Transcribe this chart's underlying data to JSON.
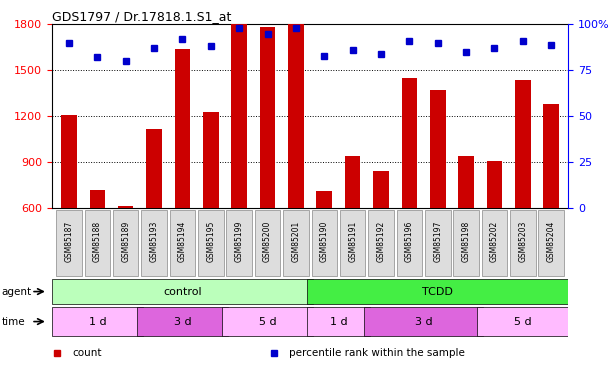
{
  "title": "GDS1797 / Dr.17818.1.S1_at",
  "samples": [
    "GSM85187",
    "GSM85188",
    "GSM85189",
    "GSM85193",
    "GSM85194",
    "GSM85195",
    "GSM85199",
    "GSM85200",
    "GSM85201",
    "GSM85190",
    "GSM85191",
    "GSM85192",
    "GSM85196",
    "GSM85197",
    "GSM85198",
    "GSM85202",
    "GSM85203",
    "GSM85204"
  ],
  "counts": [
    1210,
    720,
    615,
    1120,
    1640,
    1230,
    1800,
    1780,
    1800,
    710,
    940,
    840,
    1450,
    1370,
    940,
    910,
    1440,
    1280
  ],
  "percentiles": [
    90,
    82,
    80,
    87,
    92,
    88,
    98,
    95,
    98,
    83,
    86,
    84,
    91,
    90,
    85,
    87,
    91,
    89
  ],
  "ylim_left": [
    600,
    1800
  ],
  "ylim_right": [
    0,
    100
  ],
  "yticks_left": [
    600,
    900,
    1200,
    1500,
    1800
  ],
  "yticks_right": [
    0,
    25,
    50,
    75,
    100
  ],
  "bar_color": "#cc0000",
  "dot_color": "#0000cc",
  "agent_groups": [
    {
      "label": "control",
      "start": 0,
      "end": 9,
      "color": "#bbffbb"
    },
    {
      "label": "TCDD",
      "start": 9,
      "end": 18,
      "color": "#44ee44"
    }
  ],
  "time_groups": [
    {
      "label": "1 d",
      "start": 0,
      "end": 3,
      "color": "#ffbbff"
    },
    {
      "label": "3 d",
      "start": 3,
      "end": 6,
      "color": "#ee77ee"
    },
    {
      "label": "5 d",
      "start": 6,
      "end": 9,
      "color": "#ffbbff"
    },
    {
      "label": "1 d",
      "start": 9,
      "end": 11,
      "color": "#ffbbff"
    },
    {
      "label": "3 d",
      "start": 11,
      "end": 15,
      "color": "#ee77ee"
    },
    {
      "label": "5 d",
      "start": 15,
      "end": 18,
      "color": "#ffbbff"
    }
  ],
  "legend_items": [
    {
      "label": "count",
      "color": "#cc0000"
    },
    {
      "label": "percentile rank within the sample",
      "color": "#0000cc"
    }
  ],
  "sample_box_color": "#dddddd",
  "sample_box_border": "#888888"
}
